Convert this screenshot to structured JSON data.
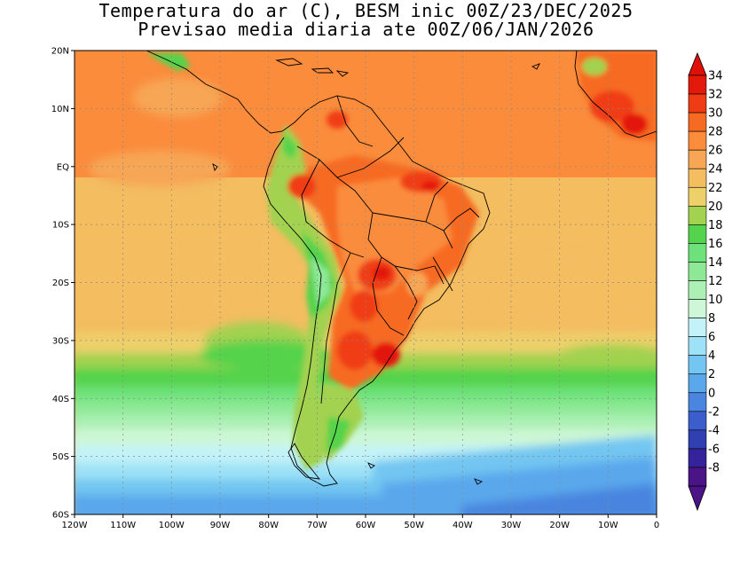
{
  "title": {
    "line1": "Temperatura do ar (C), BESM inic 00Z/23/DEC/2025",
    "line2": "Previsao media diaria ate 00Z/06/JAN/2026"
  },
  "axes": {
    "lat_labels": [
      "20N",
      "10N",
      "EQ",
      "10S",
      "20S",
      "30S",
      "40S",
      "50S",
      "60S"
    ],
    "lon_labels": [
      "120W",
      "110W",
      "100W",
      "90W",
      "80W",
      "70W",
      "60W",
      "50W",
      "40W",
      "30W",
      "20W",
      "10W",
      "0"
    ]
  },
  "colorbar": {
    "labels": [
      "34",
      "32",
      "30",
      "28",
      "26",
      "24",
      "22",
      "20",
      "18",
      "16",
      "14",
      "12",
      "10",
      "8",
      "6",
      "4",
      "2",
      "0",
      "-2",
      "-4",
      "-6",
      "-8"
    ],
    "colors": [
      "#e3190c",
      "#f03c14",
      "#f76a22",
      "#fa8c3c",
      "#f7a655",
      "#f3bd60",
      "#eed06a",
      "#a2d24f",
      "#54d34c",
      "#6ee27a",
      "#8ee996",
      "#acf0b5",
      "#cdf7d6",
      "#c3f3f8",
      "#9ee2f7",
      "#72c6f1",
      "#5aa7ec",
      "#4a85df",
      "#3c5ecd",
      "#3040b2",
      "#34239a",
      "#4a1487"
    ],
    "top_triangle_color": "#de1008",
    "bottom_triangle_color": "#4a1487"
  }
}
